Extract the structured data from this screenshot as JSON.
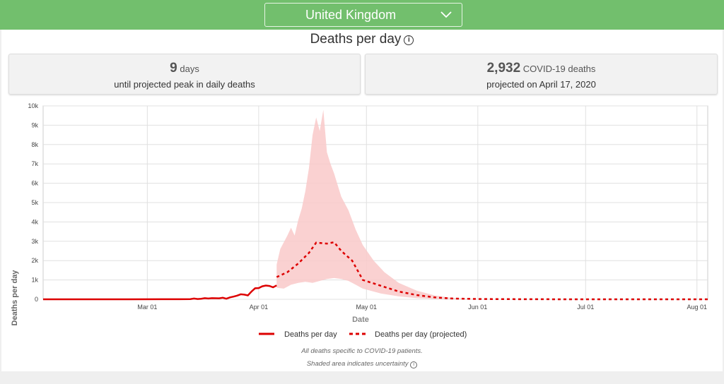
{
  "header": {
    "country": "United Kingdom"
  },
  "title": "Deaths per day",
  "cards": [
    {
      "big": "9",
      "unit": "days",
      "sub": "until projected peak in daily deaths"
    },
    {
      "big": "2,932",
      "unit": "COVID-19 deaths",
      "sub": "projected on April 17, 2020"
    }
  ],
  "footnotes": [
    "All deaths specific to COVID-19 patients.",
    "Shaded area indicates uncertainty"
  ],
  "colors": {
    "line": "#dd0000",
    "band": "#f9c9c9",
    "header": "#72bf6d"
  },
  "chart_data": {
    "type": "line",
    "xlabel": "Date",
    "ylabel": "Deaths per day",
    "ylim": [
      0,
      10000
    ],
    "y_ticks": [
      0,
      1000,
      2000,
      3000,
      4000,
      5000,
      6000,
      7000,
      8000,
      9000,
      10000
    ],
    "y_tick_labels": [
      "0",
      "1k",
      "2k",
      "3k",
      "4k",
      "5k",
      "6k",
      "7k",
      "8k",
      "9k",
      "10k"
    ],
    "x_range": [
      "2020-02-01",
      "2020-08-04"
    ],
    "x_ticks": [
      "2020-03-01",
      "2020-04-01",
      "2020-05-01",
      "2020-06-01",
      "2020-07-01",
      "2020-08-01"
    ],
    "x_tick_labels": [
      "Mar 01",
      "Apr 01",
      "May 01",
      "Jun 01",
      "Jul 01",
      "Aug 01"
    ],
    "grid": true,
    "legend_position": "bottom",
    "series": [
      {
        "name": "Deaths per day",
        "style": "solid",
        "points": [
          [
            "2020-02-01",
            0
          ],
          [
            "2020-02-25",
            0
          ],
          [
            "2020-03-05",
            2
          ],
          [
            "2020-03-10",
            5
          ],
          [
            "2020-03-13",
            10
          ],
          [
            "2020-03-14",
            40
          ],
          [
            "2020-03-15",
            15
          ],
          [
            "2020-03-16",
            30
          ],
          [
            "2020-03-17",
            60
          ],
          [
            "2020-03-18",
            40
          ],
          [
            "2020-03-19",
            60
          ],
          [
            "2020-03-20",
            55
          ],
          [
            "2020-03-21",
            50
          ],
          [
            "2020-03-22",
            80
          ],
          [
            "2020-03-23",
            30
          ],
          [
            "2020-03-24",
            100
          ],
          [
            "2020-03-25",
            140
          ],
          [
            "2020-03-26",
            190
          ],
          [
            "2020-03-27",
            260
          ],
          [
            "2020-03-28",
            240
          ],
          [
            "2020-03-29",
            200
          ],
          [
            "2020-03-30",
            400
          ],
          [
            "2020-03-31",
            570
          ],
          [
            "2020-04-01",
            580
          ],
          [
            "2020-04-02",
            670
          ],
          [
            "2020-04-03",
            710
          ],
          [
            "2020-04-04",
            690
          ],
          [
            "2020-04-05",
            620
          ],
          [
            "2020-04-06",
            720
          ]
        ]
      },
      {
        "name": "Deaths per day (projected)",
        "style": "dashed",
        "points": [
          [
            "2020-04-06",
            1150
          ],
          [
            "2020-04-09",
            1400
          ],
          [
            "2020-04-12",
            1850
          ],
          [
            "2020-04-15",
            2400
          ],
          [
            "2020-04-17",
            2932
          ],
          [
            "2020-04-20",
            2880
          ],
          [
            "2020-04-22",
            2950
          ],
          [
            "2020-04-24",
            2500
          ],
          [
            "2020-04-27",
            2000
          ],
          [
            "2020-04-30",
            1000
          ],
          [
            "2020-05-05",
            700
          ],
          [
            "2020-05-10",
            400
          ],
          [
            "2020-05-15",
            220
          ],
          [
            "2020-05-20",
            100
          ],
          [
            "2020-05-25",
            40
          ],
          [
            "2020-06-01",
            15
          ],
          [
            "2020-06-15",
            5
          ],
          [
            "2020-07-01",
            0
          ],
          [
            "2020-08-04",
            0
          ]
        ]
      }
    ],
    "uncertainty_upper": [
      [
        "2020-04-06",
        1800
      ],
      [
        "2020-04-07",
        2600
      ],
      [
        "2020-04-09",
        3300
      ],
      [
        "2020-04-10",
        3700
      ],
      [
        "2020-04-11",
        3300
      ],
      [
        "2020-04-12",
        4100
      ],
      [
        "2020-04-13",
        4700
      ],
      [
        "2020-04-14",
        5600
      ],
      [
        "2020-04-15",
        6800
      ],
      [
        "2020-04-16",
        8500
      ],
      [
        "2020-04-17",
        9400
      ],
      [
        "2020-04-18",
        8700
      ],
      [
        "2020-04-19",
        9800
      ],
      [
        "2020-04-20",
        7600
      ],
      [
        "2020-04-21",
        7000
      ],
      [
        "2020-04-22",
        6500
      ],
      [
        "2020-04-23",
        5900
      ],
      [
        "2020-04-24",
        5300
      ],
      [
        "2020-04-26",
        4600
      ],
      [
        "2020-04-28",
        3600
      ],
      [
        "2020-04-30",
        2800
      ],
      [
        "2020-05-03",
        2000
      ],
      [
        "2020-05-06",
        1400
      ],
      [
        "2020-05-10",
        850
      ],
      [
        "2020-05-15",
        450
      ],
      [
        "2020-05-20",
        200
      ],
      [
        "2020-05-25",
        70
      ],
      [
        "2020-06-01",
        10
      ],
      [
        "2020-06-10",
        0
      ]
    ],
    "uncertainty_lower": [
      [
        "2020-04-06",
        600
      ],
      [
        "2020-04-08",
        550
      ],
      [
        "2020-04-10",
        750
      ],
      [
        "2020-04-12",
        850
      ],
      [
        "2020-04-14",
        900
      ],
      [
        "2020-04-16",
        850
      ],
      [
        "2020-04-18",
        950
      ],
      [
        "2020-04-20",
        1050
      ],
      [
        "2020-04-22",
        1100
      ],
      [
        "2020-04-24",
        1050
      ],
      [
        "2020-04-26",
        950
      ],
      [
        "2020-04-28",
        750
      ],
      [
        "2020-04-30",
        550
      ],
      [
        "2020-05-05",
        300
      ],
      [
        "2020-05-10",
        150
      ],
      [
        "2020-05-15",
        60
      ],
      [
        "2020-05-20",
        20
      ],
      [
        "2020-06-01",
        0
      ],
      [
        "2020-06-10",
        0
      ]
    ]
  }
}
